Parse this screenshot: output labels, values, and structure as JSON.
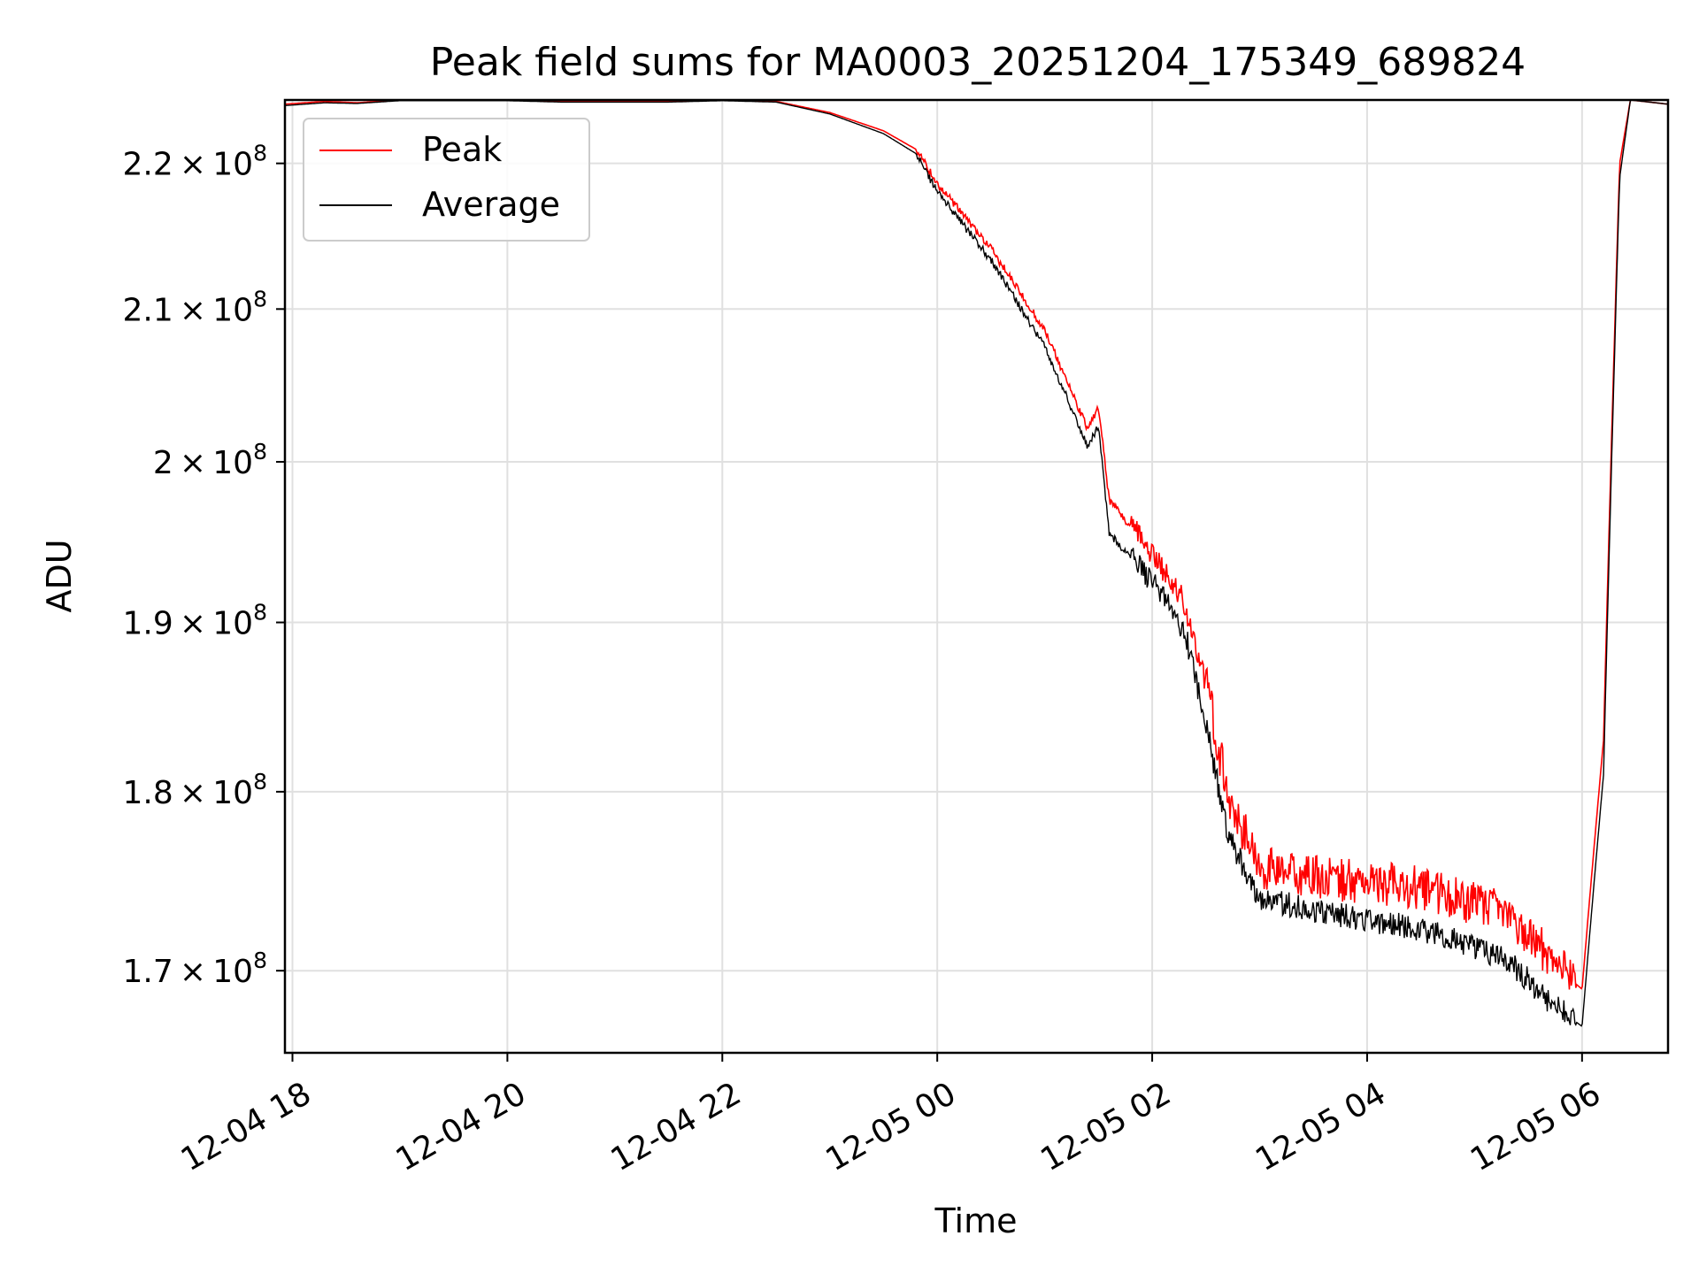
{
  "chart_data": {
    "type": "line",
    "title": "Peak field sums for MA0003_20251204_175349_689824",
    "xlabel": "Time",
    "ylabel": "ADU",
    "xlim_hours": [
      17.93,
      30.8
    ],
    "ylim": [
      165600000,
      224500000
    ],
    "y_scale": "log",
    "grid": true,
    "legend_location": "upper-left",
    "x_ticks": [
      {
        "label": "12-04 18",
        "hour": 18
      },
      {
        "label": "12-04 20",
        "hour": 20
      },
      {
        "label": "12-04 22",
        "hour": 22
      },
      {
        "label": "12-05 00",
        "hour": 24
      },
      {
        "label": "12-05 02",
        "hour": 26
      },
      {
        "label": "12-05 04",
        "hour": 28
      },
      {
        "label": "12-05 06",
        "hour": 30
      }
    ],
    "y_ticks": [
      {
        "mantissa": "2.2",
        "exponent": "8",
        "value": 220000000
      },
      {
        "mantissa": "2.1",
        "exponent": "8",
        "value": 210000000
      },
      {
        "mantissa": "2",
        "exponent": "8",
        "value": 200000000
      },
      {
        "mantissa": "1.9",
        "exponent": "8",
        "value": 190000000
      },
      {
        "mantissa": "1.8",
        "exponent": "8",
        "value": 180000000
      },
      {
        "mantissa": "1.7",
        "exponent": "8",
        "value": 170000000
      }
    ],
    "x_hours": [
      17.93,
      18.3,
      18.6,
      19.0,
      19.5,
      20.0,
      20.5,
      21.0,
      21.5,
      22.0,
      22.5,
      23.0,
      23.5,
      23.8,
      24.0,
      24.5,
      25.0,
      25.5,
      25.4,
      25.6,
      26.0,
      26.3,
      26.5,
      26.7,
      27.0,
      27.5,
      28.0,
      28.5,
      28.9,
      29.3,
      29.5,
      29.7,
      30.0,
      30.2,
      30.35,
      30.45,
      30.8
    ],
    "series": [
      {
        "name": "Peak",
        "color": "#ff0000",
        "values": [
          224200000,
          224400000,
          224300000,
          224500000,
          224500000,
          224500000,
          224400000,
          224400000,
          224400000,
          224500000,
          224400000,
          223600000,
          222300000,
          221000000,
          218500000,
          214000000,
          208500000,
          203500000,
          202000000,
          197500000,
          194000000,
          191000000,
          186000000,
          179500000,
          175300000,
          174800000,
          174500000,
          174200000,
          173500000,
          172800000,
          171500000,
          170500000,
          169000000,
          183000000,
          220000000,
          224500000,
          224200000
        ]
      },
      {
        "name": "Average",
        "color": "#000000",
        "values": [
          224100000,
          224300000,
          224250000,
          224450000,
          224450000,
          224450000,
          224350000,
          224350000,
          224350000,
          224450000,
          224350000,
          223500000,
          222100000,
          220700000,
          218000000,
          213300000,
          207500000,
          202300000,
          201000000,
          195500000,
          192500000,
          189500000,
          184000000,
          177500000,
          174000000,
          173300000,
          172800000,
          172300000,
          171500000,
          170600000,
          169500000,
          168300000,
          167000000,
          181000000,
          219000000,
          224500000,
          224200000
        ]
      }
    ]
  }
}
